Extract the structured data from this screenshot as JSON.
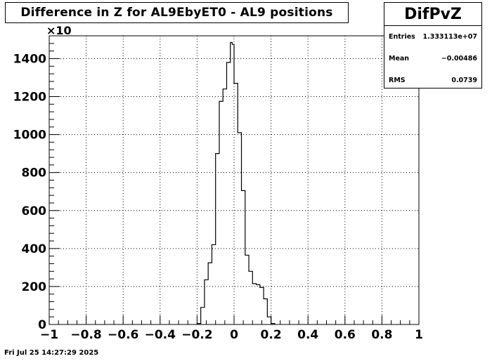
{
  "title": "Difference in Z for AL9EbyET0 - AL9 positions",
  "stats": {
    "name": "DifPvZ",
    "rows": [
      {
        "label": "Entries",
        "value": "1.333113e+07"
      },
      {
        "label": "Mean",
        "value": "−0.00486"
      },
      {
        "label": "RMS",
        "value": "0.0739"
      }
    ]
  },
  "timestamp": "Fri Jul 25 14:27:29 2025",
  "chart_data": {
    "type": "histogram",
    "title": "Difference in Z for AL9EbyET0 - AL9 positions",
    "xlim": [
      -1,
      1
    ],
    "ylim": [
      0,
      1520
    ],
    "y_multiplier_label": "×10",
    "grid": true,
    "x_ticks": [
      -1,
      -0.8,
      -0.6,
      -0.4,
      -0.2,
      0,
      0.2,
      0.4,
      0.6,
      0.8,
      1
    ],
    "x_tick_labels": [
      "−1",
      "−0.8",
      "−0.6",
      "−0.4",
      "−0.2",
      "0",
      "0.2",
      "0.4",
      "0.6",
      "0.8",
      "1"
    ],
    "y_ticks": [
      0,
      200,
      400,
      600,
      800,
      1000,
      1200,
      1400
    ],
    "y_tick_labels": [
      "0",
      "200",
      "400",
      "600",
      "800",
      "1000",
      "1200",
      "1400"
    ],
    "bins": [
      {
        "lo": -0.2,
        "hi": -0.18,
        "v": 5
      },
      {
        "lo": -0.18,
        "hi": -0.16,
        "v": 90
      },
      {
        "lo": -0.16,
        "hi": -0.14,
        "v": 235
      },
      {
        "lo": -0.14,
        "hi": -0.12,
        "v": 325
      },
      {
        "lo": -0.12,
        "hi": -0.1,
        "v": 420
      },
      {
        "lo": -0.1,
        "hi": -0.08,
        "v": 900
      },
      {
        "lo": -0.08,
        "hi": -0.06,
        "v": 1175
      },
      {
        "lo": -0.06,
        "hi": -0.04,
        "v": 1240
      },
      {
        "lo": -0.04,
        "hi": -0.02,
        "v": 1380
      },
      {
        "lo": -0.02,
        "hi": -0.01,
        "v": 1485
      },
      {
        "lo": -0.01,
        "hi": 0.0,
        "v": 1475
      },
      {
        "lo": 0.0,
        "hi": 0.02,
        "v": 1270
      },
      {
        "lo": 0.02,
        "hi": 0.04,
        "v": 1010
      },
      {
        "lo": 0.04,
        "hi": 0.06,
        "v": 705
      },
      {
        "lo": 0.06,
        "hi": 0.08,
        "v": 365
      },
      {
        "lo": 0.08,
        "hi": 0.1,
        "v": 280
      },
      {
        "lo": 0.1,
        "hi": 0.12,
        "v": 215
      },
      {
        "lo": 0.12,
        "hi": 0.14,
        "v": 210
      },
      {
        "lo": 0.14,
        "hi": 0.16,
        "v": 195
      },
      {
        "lo": 0.16,
        "hi": 0.18,
        "v": 135
      },
      {
        "lo": 0.18,
        "hi": 0.2,
        "v": 40
      },
      {
        "lo": 0.2,
        "hi": 0.22,
        "v": 5
      }
    ]
  }
}
